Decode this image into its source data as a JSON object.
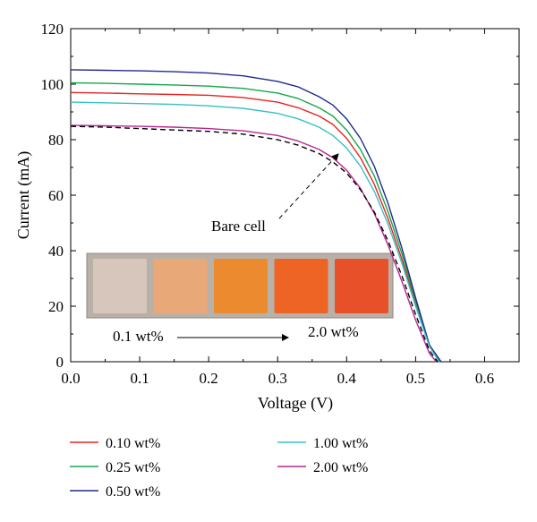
{
  "chart_data": {
    "type": "line",
    "xlabel": "Voltage (V)",
    "ylabel": "Current (mA)",
    "xlim": [
      0,
      0.65
    ],
    "ylim": [
      0,
      120
    ],
    "xticks": [
      "0.0",
      "0.1",
      "0.2",
      "0.3",
      "0.4",
      "0.5",
      "0.6"
    ],
    "yticks": [
      "0",
      "20",
      "40",
      "60",
      "80",
      "100",
      "120"
    ],
    "grid": false,
    "legend_position": "bottom",
    "series": [
      {
        "name": "0.10 wt%",
        "color": "#e8231f",
        "dash": "solid",
        "x": [
          0,
          0.05,
          0.1,
          0.15,
          0.2,
          0.25,
          0.3,
          0.33,
          0.36,
          0.38,
          0.4,
          0.42,
          0.44,
          0.46,
          0.48,
          0.5,
          0.52,
          0.535
        ],
        "y": [
          97,
          96.8,
          96.5,
          96.3,
          96,
          95.2,
          93.5,
          91.5,
          88.5,
          85.5,
          80.5,
          73.5,
          64,
          51.5,
          37,
          21,
          6,
          0
        ]
      },
      {
        "name": "0.25 wt%",
        "color": "#13a84a",
        "dash": "solid",
        "x": [
          0,
          0.05,
          0.1,
          0.15,
          0.2,
          0.25,
          0.3,
          0.33,
          0.36,
          0.38,
          0.4,
          0.42,
          0.44,
          0.46,
          0.48,
          0.5,
          0.52,
          0.536
        ],
        "y": [
          100.5,
          100.3,
          100,
          99.7,
          99.3,
          98.5,
          96.8,
          94.8,
          91.5,
          88.5,
          83.5,
          76.5,
          67,
          54,
          39,
          22,
          6,
          0
        ]
      },
      {
        "name": "0.50 wt%",
        "color": "#1f2a8c",
        "dash": "solid",
        "x": [
          0,
          0.05,
          0.1,
          0.15,
          0.2,
          0.25,
          0.3,
          0.33,
          0.36,
          0.38,
          0.4,
          0.42,
          0.44,
          0.46,
          0.48,
          0.5,
          0.52,
          0.537
        ],
        "y": [
          105.2,
          105,
          104.8,
          104.5,
          104,
          103,
          101,
          99,
          95.5,
          92.5,
          87.5,
          80.5,
          70.5,
          57,
          41,
          23,
          6,
          0
        ]
      },
      {
        "name": "1.00 wt%",
        "color": "#36c1c4",
        "dash": "solid",
        "x": [
          0,
          0.05,
          0.1,
          0.15,
          0.2,
          0.25,
          0.3,
          0.33,
          0.36,
          0.38,
          0.4,
          0.42,
          0.44,
          0.46,
          0.48,
          0.5,
          0.52,
          0.534
        ],
        "y": [
          93.5,
          93.3,
          93,
          92.7,
          92.2,
          91.3,
          89.5,
          87.5,
          84.5,
          81.5,
          77,
          70.5,
          61.5,
          49.5,
          35.5,
          20,
          5.5,
          0
        ]
      },
      {
        "name": "2.00 wt%",
        "color": "#b8278f",
        "dash": "solid",
        "x": [
          0,
          0.05,
          0.1,
          0.15,
          0.2,
          0.25,
          0.3,
          0.33,
          0.36,
          0.38,
          0.4,
          0.42,
          0.44,
          0.46,
          0.48,
          0.5,
          0.52,
          0.53
        ],
        "y": [
          85.2,
          85,
          84.8,
          84.5,
          84,
          83.2,
          81.5,
          79.5,
          76.5,
          73.5,
          69,
          62.5,
          53.5,
          42,
          29,
          15,
          3,
          0
        ]
      },
      {
        "name": "Bare cell",
        "color": "#000000",
        "dash": "dashed",
        "x": [
          0,
          0.05,
          0.1,
          0.15,
          0.2,
          0.25,
          0.3,
          0.33,
          0.36,
          0.38,
          0.4,
          0.42,
          0.44,
          0.46,
          0.48,
          0.5,
          0.52,
          0.532
        ],
        "y": [
          84.8,
          84.5,
          84,
          83.5,
          83,
          82,
          80,
          78,
          75,
          72,
          68,
          62,
          54,
          43.5,
          31,
          17,
          4,
          0
        ]
      }
    ],
    "annotations": {
      "bare_cell": "Bare cell",
      "scale_low": "0.1 wt%",
      "scale_high": "2.0 wt%"
    },
    "inset_swatches": [
      "#d6c6bc",
      "#e8a878",
      "#ec8a30",
      "#ed6424",
      "#e8502a"
    ],
    "legend_order": [
      0,
      3,
      1,
      4,
      2
    ]
  }
}
